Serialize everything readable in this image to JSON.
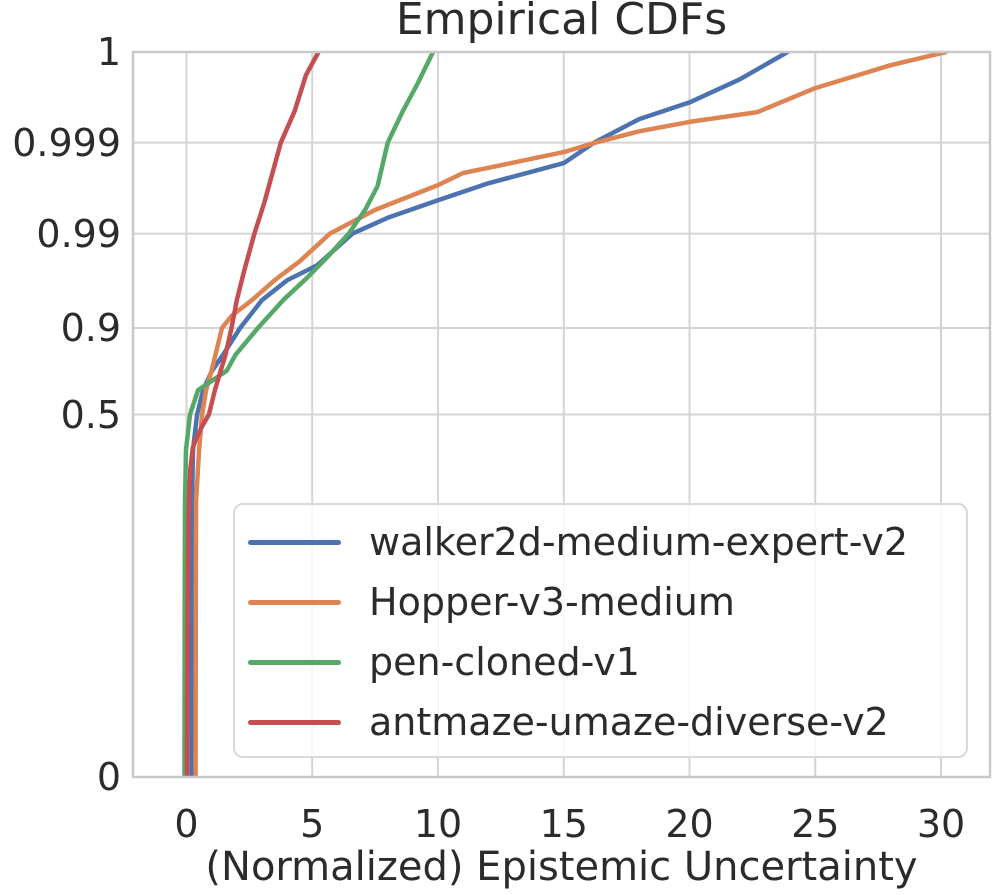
{
  "title": "Empirical CDFs",
  "chart_data": {
    "type": "line",
    "title": "Empirical CDFs",
    "xlabel": "(Normalized) Epistemic Uncertainty",
    "ylabel": "",
    "yscale": "logit",
    "grid": true,
    "legend_position": "lower right",
    "xlim": [
      -2.1,
      32.0
    ],
    "ylim": [
      0.0001,
      0.9999
    ],
    "x_ticks": [
      0,
      5,
      10,
      15,
      20,
      25,
      30
    ],
    "y_ticks": [
      {
        "label": "0",
        "value": 0
      },
      {
        "label": "0.5",
        "value": 0.5
      },
      {
        "label": "0.9",
        "value": 0.9
      },
      {
        "label": "0.99",
        "value": 0.99
      },
      {
        "label": "0.999",
        "value": 0.999
      },
      {
        "label": "1",
        "value": 1
      }
    ],
    "colors": {
      "grid": "#d4d4d4",
      "spine": "#c9c9c9",
      "text": "#2b2b2b",
      "background": "#ffffff"
    },
    "series": [
      {
        "name": "walker2d-medium-expert-v2",
        "color": "#4C72B0",
        "points": [
          [
            0.2,
            0.0001
          ],
          [
            0.21,
            0.01
          ],
          [
            0.22,
            0.1
          ],
          [
            0.26,
            0.29
          ],
          [
            0.42,
            0.5
          ],
          [
            0.66,
            0.65
          ],
          [
            1.0,
            0.75
          ],
          [
            1.45,
            0.82
          ],
          [
            2.13,
            0.9
          ],
          [
            3.0,
            0.948
          ],
          [
            4.0,
            0.968
          ],
          [
            5.2,
            0.978
          ],
          [
            6.6,
            0.99
          ],
          [
            8.0,
            0.9933
          ],
          [
            10.0,
            0.9957
          ],
          [
            12.0,
            0.9972
          ],
          [
            15.0,
            0.99832
          ],
          [
            16.2,
            0.999
          ],
          [
            18.0,
            0.99945
          ],
          [
            20.0,
            0.99964
          ],
          [
            22.0,
            0.9998
          ],
          [
            23.9,
            0.9999
          ]
        ]
      },
      {
        "name": "Hopper-v3-medium",
        "color": "#DD8452",
        "points": [
          [
            0.36,
            0.0001
          ],
          [
            0.37,
            0.01
          ],
          [
            0.38,
            0.1
          ],
          [
            0.5,
            0.29
          ],
          [
            0.62,
            0.5
          ],
          [
            0.78,
            0.65
          ],
          [
            1.0,
            0.755
          ],
          [
            1.41,
            0.9
          ],
          [
            1.8,
            0.925
          ],
          [
            2.6,
            0.948
          ],
          [
            3.5,
            0.968
          ],
          [
            4.5,
            0.98
          ],
          [
            5.7,
            0.99
          ],
          [
            7.5,
            0.9945
          ],
          [
            10.0,
            0.99707
          ],
          [
            11.0,
            0.99784
          ],
          [
            13.0,
            0.99834
          ],
          [
            15.0,
            0.99873
          ],
          [
            16.25,
            0.999
          ],
          [
            18.0,
            0.99925
          ],
          [
            20.0,
            0.99941
          ],
          [
            22.7,
            0.99954
          ],
          [
            25.0,
            0.99975
          ],
          [
            28.0,
            0.99986
          ],
          [
            30.2,
            0.9999
          ]
        ]
      },
      {
        "name": "pen-cloned-v1",
        "color": "#55A868",
        "points": [
          [
            -0.08,
            0.0001
          ],
          [
            -0.07,
            0.01
          ],
          [
            -0.06,
            0.1
          ],
          [
            -0.02,
            0.29
          ],
          [
            0.14,
            0.5
          ],
          [
            0.46,
            0.65
          ],
          [
            1.6,
            0.752
          ],
          [
            1.95,
            0.82
          ],
          [
            2.45,
            0.87
          ],
          [
            2.84,
            0.9
          ],
          [
            3.84,
            0.948
          ],
          [
            4.8,
            0.97
          ],
          [
            5.6,
            0.982
          ],
          [
            6.45,
            0.99
          ],
          [
            7.1,
            0.9945
          ],
          [
            7.6,
            0.997
          ],
          [
            8.0,
            0.999
          ],
          [
            8.6,
            0.99955
          ],
          [
            9.2,
            0.99978
          ],
          [
            9.8,
            0.9999
          ]
        ]
      },
      {
        "name": "antmaze-umaze-diverse-v2",
        "color": "#C44E52",
        "points": [
          [
            0.02,
            0.0001
          ],
          [
            0.03,
            0.001
          ],
          [
            0.05,
            0.01
          ],
          [
            0.08,
            0.06
          ],
          [
            0.1,
            0.1
          ],
          [
            0.15,
            0.2
          ],
          [
            0.25,
            0.3
          ],
          [
            0.38,
            0.35
          ],
          [
            0.6,
            0.42
          ],
          [
            0.89,
            0.5
          ],
          [
            1.13,
            0.65
          ],
          [
            1.35,
            0.75
          ],
          [
            1.55,
            0.82
          ],
          [
            1.79,
            0.9
          ],
          [
            2.0,
            0.948
          ],
          [
            2.3,
            0.975
          ],
          [
            2.7,
            0.99
          ],
          [
            3.1,
            0.9955
          ],
          [
            3.75,
            0.999
          ],
          [
            4.3,
            0.99955
          ],
          [
            4.75,
            0.99982
          ],
          [
            5.25,
            0.9999
          ]
        ]
      }
    ]
  }
}
